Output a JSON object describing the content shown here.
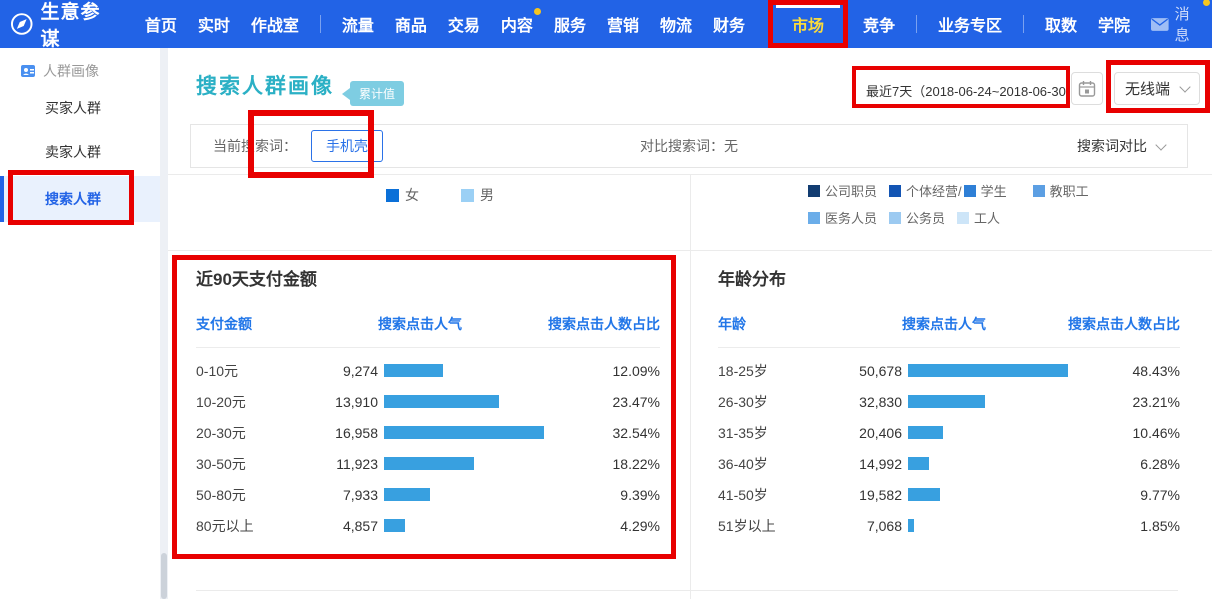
{
  "colors": {
    "nav_bg": "#2263e6",
    "annotation_red": "#e80000",
    "bar_blue": "#38a0e0",
    "title_teal": "#2bb0c5"
  },
  "nav": {
    "brand": "生意参谋",
    "home": "首页",
    "realtime": "实时",
    "war_room": "作战室",
    "traffic": "流量",
    "goods": "商品",
    "trade": "交易",
    "content": "内容",
    "service": "服务",
    "marketing": "营销",
    "logistics": "物流",
    "finance": "财务",
    "market": "市场",
    "compete": "竞争",
    "biz_zone": "业务专区",
    "data_fetch": "取数",
    "academy": "学院",
    "messages": "消息"
  },
  "sidebar": {
    "group_label": "人群画像",
    "buyer": "买家人群",
    "seller": "卖家人群",
    "search": "搜索人群"
  },
  "page": {
    "title": "搜索人群画像",
    "badge": "累计值"
  },
  "toolbar": {
    "date_range": "最近7天（2018-06-24~2018-06-30）",
    "terminal": "无线端"
  },
  "filter": {
    "current_label": "当前搜索词：",
    "keyword": "手机壳",
    "compare_text": "对比搜索词：无",
    "compare_dropdown": "搜索词对比"
  },
  "gender_legend": {
    "items": [
      {
        "label": "女",
        "color": "#0b70d8"
      },
      {
        "label": "男",
        "color": "#9bd0f5"
      }
    ]
  },
  "occupation_legend": {
    "row1": [
      {
        "label": "公司职员",
        "color": "#123c71"
      },
      {
        "label": "个体经营/",
        "color": "#1355b4"
      },
      {
        "label": "学生",
        "color": "#2e7fd6"
      },
      {
        "label": "教职工",
        "color": "#5c9fe3"
      }
    ],
    "row2": [
      {
        "label": "医务人员",
        "color": "#6bade9"
      },
      {
        "label": "公务员",
        "color": "#9ccaf1"
      },
      {
        "label": "工人",
        "color": "#cde5f8"
      }
    ]
  },
  "payment_panel": {
    "title": "近90天支付金额",
    "col1": "支付金额",
    "col2": "搜索点击人气",
    "col3": "搜索点击人数占比",
    "rows": [
      {
        "label": "0-10元",
        "value": "9,274",
        "pct": "12.09%",
        "pct_num": 12.09
      },
      {
        "label": "10-20元",
        "value": "13,910",
        "pct": "23.47%",
        "pct_num": 23.47
      },
      {
        "label": "20-30元",
        "value": "16,958",
        "pct": "32.54%",
        "pct_num": 32.54
      },
      {
        "label": "30-50元",
        "value": "11,923",
        "pct": "18.22%",
        "pct_num": 18.22
      },
      {
        "label": "50-80元",
        "value": "7,933",
        "pct": "9.39%",
        "pct_num": 9.39
      },
      {
        "label": "80元以上",
        "value": "4,857",
        "pct": "4.29%",
        "pct_num": 4.29
      }
    ]
  },
  "age_panel": {
    "title": "年龄分布",
    "col1": "年龄",
    "col2": "搜索点击人气",
    "col3": "搜索点击人数占比",
    "rows": [
      {
        "label": "18-25岁",
        "value": "50,678",
        "pct": "48.43%",
        "pct_num": 48.43
      },
      {
        "label": "26-30岁",
        "value": "32,830",
        "pct": "23.21%",
        "pct_num": 23.21
      },
      {
        "label": "31-35岁",
        "value": "20,406",
        "pct": "10.46%",
        "pct_num": 10.46
      },
      {
        "label": "36-40岁",
        "value": "14,992",
        "pct": "6.28%",
        "pct_num": 6.28
      },
      {
        "label": "41-50岁",
        "value": "19,582",
        "pct": "9.77%",
        "pct_num": 9.77
      },
      {
        "label": "51岁以上",
        "value": "7,068",
        "pct": "1.85%",
        "pct_num": 1.85
      }
    ]
  },
  "chart_data": [
    {
      "type": "bar",
      "orientation": "horizontal",
      "title": "近90天支付金额",
      "categories": [
        "0-10元",
        "10-20元",
        "20-30元",
        "30-50元",
        "50-80元",
        "80元以上"
      ],
      "series": [
        {
          "name": "搜索点击人气",
          "values": [
            9274,
            13910,
            16958,
            11923,
            7933,
            4857
          ]
        },
        {
          "name": "搜索点击人数占比(%)",
          "values": [
            12.09,
            23.47,
            32.54,
            18.22,
            9.39,
            4.29
          ]
        }
      ],
      "bar_color": "#38a0e0",
      "note": "bar length proportional to 搜索点击人数占比"
    },
    {
      "type": "bar",
      "orientation": "horizontal",
      "title": "年龄分布",
      "categories": [
        "18-25岁",
        "26-30岁",
        "31-35岁",
        "36-40岁",
        "41-50岁",
        "51岁以上"
      ],
      "series": [
        {
          "name": "搜索点击人气",
          "values": [
            50678,
            32830,
            20406,
            14992,
            19582,
            7068
          ]
        },
        {
          "name": "搜索点击人数占比(%)",
          "values": [
            48.43,
            23.21,
            10.46,
            6.28,
            9.77,
            1.85
          ]
        }
      ],
      "bar_color": "#38a0e0",
      "note": "bar length proportional to 搜索点击人数占比"
    }
  ]
}
